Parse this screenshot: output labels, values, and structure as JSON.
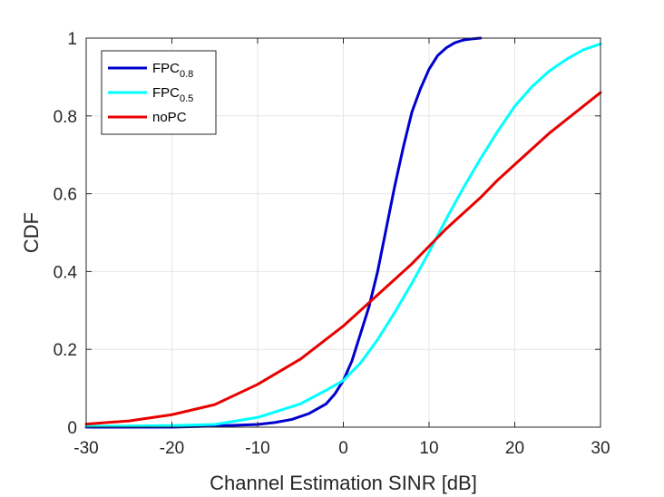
{
  "chart_data": {
    "type": "line",
    "xlabel": "Channel Estimation SINR [dB]",
    "ylabel": "CDF",
    "xlim": [
      -30,
      30
    ],
    "ylim": [
      0,
      1
    ],
    "xticks": [
      -30,
      -20,
      -10,
      0,
      10,
      20,
      30
    ],
    "yticks": [
      0,
      0.2,
      0.4,
      0.6,
      0.8,
      1
    ],
    "xtick_labels": [
      "-30",
      "-20",
      "-10",
      "0",
      "10",
      "20",
      "30"
    ],
    "ytick_labels": [
      "0",
      "0.2",
      "0.4",
      "0.6",
      "0.8",
      "1"
    ],
    "grid": true,
    "legend_position": "top-left",
    "series": [
      {
        "name": "FPC",
        "name_subscript": "0.8",
        "color": "#0000cd",
        "x": [
          -30,
          -20,
          -15,
          -10,
          -8,
          -6,
          -4,
          -2,
          -1,
          0,
          1,
          2,
          3,
          4,
          5,
          6,
          7,
          8,
          9,
          10,
          11,
          12,
          13,
          14,
          15,
          16
        ],
        "y": [
          0,
          0,
          0.003,
          0.007,
          0.012,
          0.02,
          0.035,
          0.06,
          0.085,
          0.12,
          0.17,
          0.24,
          0.31,
          0.4,
          0.51,
          0.62,
          0.72,
          0.81,
          0.87,
          0.92,
          0.955,
          0.975,
          0.988,
          0.995,
          0.998,
          1.0
        ]
      },
      {
        "name": "FPC",
        "name_subscript": "0.5",
        "color": "#00ffff",
        "x": [
          -30,
          -20,
          -15,
          -10,
          -5,
          -2,
          0,
          2,
          4,
          6,
          8,
          10,
          12,
          14,
          16,
          18,
          20,
          22,
          24,
          26,
          28,
          30
        ],
        "y": [
          0.002,
          0.004,
          0.007,
          0.025,
          0.06,
          0.095,
          0.12,
          0.165,
          0.225,
          0.295,
          0.37,
          0.45,
          0.535,
          0.615,
          0.69,
          0.76,
          0.825,
          0.875,
          0.915,
          0.945,
          0.97,
          0.985
        ]
      },
      {
        "name": "noPC",
        "color": "#e80000",
        "x": [
          -30,
          -25,
          -20,
          -15,
          -10,
          -5,
          0,
          2,
          4,
          6,
          8,
          10,
          12,
          14,
          16,
          18,
          20,
          22,
          24,
          26,
          28,
          30
        ],
        "y": [
          0.008,
          0.016,
          0.032,
          0.058,
          0.11,
          0.175,
          0.26,
          0.3,
          0.34,
          0.38,
          0.42,
          0.465,
          0.51,
          0.55,
          0.59,
          0.635,
          0.675,
          0.715,
          0.755,
          0.79,
          0.825,
          0.86
        ]
      }
    ]
  }
}
